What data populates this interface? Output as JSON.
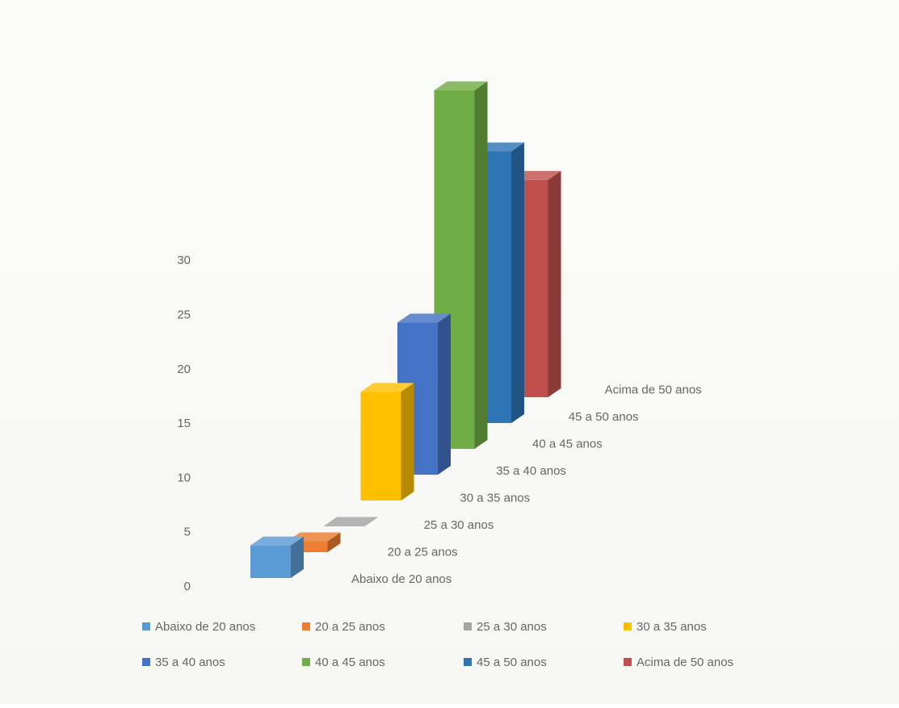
{
  "chart_data": {
    "type": "bar",
    "style": "3d-column",
    "title": "",
    "xlabel": "",
    "ylabel": "",
    "ylim": [
      0,
      30
    ],
    "yticks": [
      "0",
      "5",
      "10",
      "15",
      "20",
      "25",
      "30"
    ],
    "categories": [
      "Abaixo de 20 anos",
      "20 a 25 anos",
      "25 a 30 anos",
      "30 a 35 anos",
      "35 a 40 anos",
      "40 a 45 anos",
      "45 a 50 anos",
      "Acima de 50 anos"
    ],
    "series": [
      {
        "name": "Abaixo de 20 anos",
        "value": 3,
        "color": "#5b9bd5"
      },
      {
        "name": "20 a 25 anos",
        "value": 1,
        "color": "#ed7d31"
      },
      {
        "name": "25 a 30 anos",
        "value": 0,
        "color": "#a5a5a5"
      },
      {
        "name": "30 a 35 anos",
        "value": 10,
        "color": "#ffc000"
      },
      {
        "name": "35 a 40 anos",
        "value": 14,
        "color": "#4472c4"
      },
      {
        "name": "40 a 45 anos",
        "value": 33,
        "color": "#70ad47"
      },
      {
        "name": "45 a 50 anos",
        "value": 25,
        "color": "#2e75b6"
      },
      {
        "name": "Acima de 50 anos",
        "value": 20,
        "color": "#c0504d"
      }
    ],
    "grid": false,
    "legend_position": "bottom"
  }
}
